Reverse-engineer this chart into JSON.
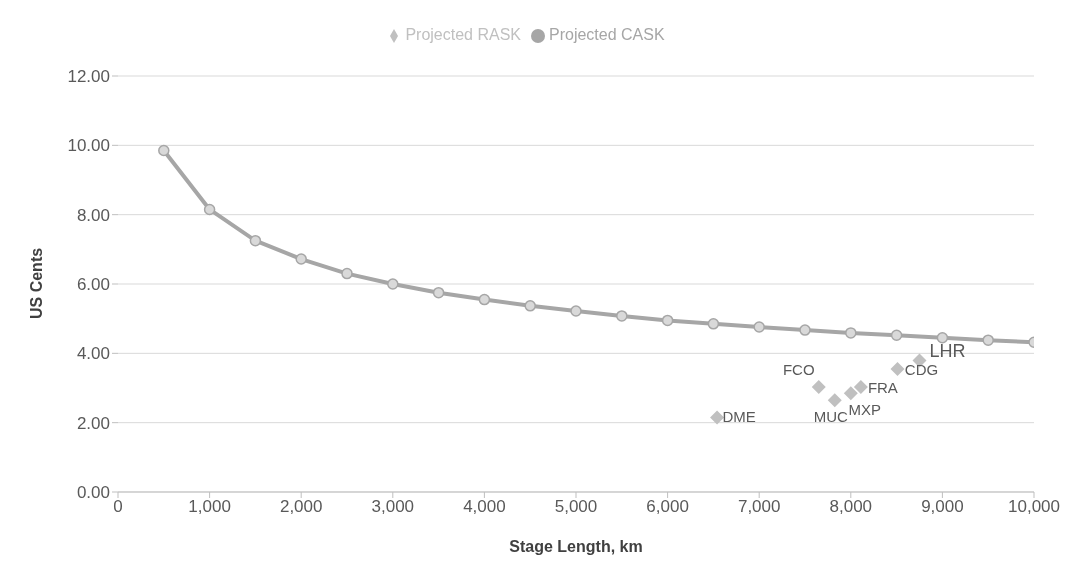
{
  "chart_data": {
    "type": "scatter",
    "xlabel": "Stage Length, km",
    "ylabel": "US Cents",
    "legend": "top",
    "grid": "y",
    "xlim": [
      0,
      10000
    ],
    "xticks": [
      {
        "value": 0,
        "label": "0"
      },
      {
        "value": 1000,
        "label": "1,000"
      },
      {
        "value": 2000,
        "label": "2,000"
      },
      {
        "value": 3000,
        "label": "3,000"
      },
      {
        "value": 4000,
        "label": "4,000"
      },
      {
        "value": 5000,
        "label": "5,000"
      },
      {
        "value": 6000,
        "label": "6,000"
      },
      {
        "value": 7000,
        "label": "7,000"
      },
      {
        "value": 8000,
        "label": "8,000"
      },
      {
        "value": 9000,
        "label": "9,000"
      },
      {
        "value": 10000,
        "label": "10,000"
      }
    ],
    "ylim": [
      0,
      12
    ],
    "yticks": [
      {
        "value": 0,
        "label": "0.00"
      },
      {
        "value": 2,
        "label": "2.00"
      },
      {
        "value": 4,
        "label": "4.00"
      },
      {
        "value": 6,
        "label": "6.00"
      },
      {
        "value": 8,
        "label": "8.00"
      },
      {
        "value": 10,
        "label": "10.00"
      },
      {
        "value": 12,
        "label": "12.00"
      }
    ],
    "series": [
      {
        "name": "Projected RASK",
        "marker": "diamond",
        "color": "#c0c0c0",
        "x": [
          6540,
          7650,
          7825,
          8000,
          8110,
          8510,
          8750
        ],
        "values": [
          2.15,
          3.03,
          2.65,
          2.85,
          3.03,
          3.55,
          3.79
        ]
      },
      {
        "name": "Projected CASK",
        "type": "line",
        "marker": "circle",
        "color": "#a6a6a6",
        "x": [
          500,
          1000,
          1500,
          2000,
          2500,
          3000,
          3500,
          4000,
          4500,
          5000,
          5500,
          6000,
          6500,
          7000,
          7500,
          8000,
          8500,
          9000,
          9500,
          10000
        ],
        "values": [
          9.85,
          8.15,
          7.25,
          6.72,
          6.3,
          6.0,
          5.75,
          5.55,
          5.37,
          5.22,
          5.08,
          4.95,
          4.85,
          4.76,
          4.67,
          4.59,
          4.52,
          4.45,
          4.38,
          4.32
        ]
      }
    ],
    "annotations": [
      {
        "text": "DME",
        "x": 6540,
        "y": 2.15
      },
      {
        "text": "FCO",
        "x": 7650,
        "y": 3.03
      },
      {
        "text": "MUC",
        "x": 7825,
        "y": 2.65
      },
      {
        "text": "MXP",
        "x": 8000,
        "y": 2.85
      },
      {
        "text": "FRA",
        "x": 8110,
        "y": 3.03
      },
      {
        "text": "CDG",
        "x": 8510,
        "y": 3.55
      },
      {
        "text": "LHR",
        "x": 8750,
        "y": 3.79
      }
    ]
  }
}
